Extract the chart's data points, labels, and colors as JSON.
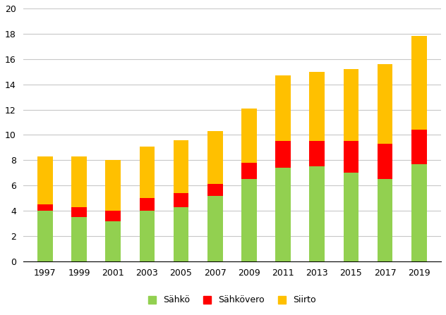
{
  "years": [
    "1997",
    "1999",
    "2001",
    "2003",
    "2005",
    "2007",
    "2009",
    "2011",
    "2013",
    "2015",
    "2017",
    "2019"
  ],
  "sahko": [
    4.0,
    3.5,
    3.2,
    4.0,
    4.3,
    5.2,
    6.5,
    7.4,
    7.5,
    7.0,
    6.5,
    7.7
  ],
  "sahkovero": [
    0.5,
    0.8,
    0.8,
    1.0,
    1.1,
    0.9,
    1.3,
    2.1,
    2.0,
    2.5,
    2.8,
    2.7
  ],
  "siirto": [
    3.8,
    4.0,
    4.0,
    4.1,
    4.2,
    4.2,
    4.3,
    5.2,
    5.5,
    5.7,
    6.3,
    7.4
  ],
  "color_sahko": "#92d050",
  "color_sahkovero": "#ff0000",
  "color_siirto": "#ffc000",
  "legend_labels": [
    "Sähkö",
    "Sähkövero",
    "Siirto"
  ],
  "ylim": [
    0,
    20
  ],
  "yticks": [
    0,
    2,
    4,
    6,
    8,
    10,
    12,
    14,
    16,
    18,
    20
  ],
  "background_color": "#ffffff",
  "grid_color": "#c8c8c8",
  "bar_width": 0.45,
  "figsize": [
    6.32,
    4.47
  ],
  "dpi": 100
}
